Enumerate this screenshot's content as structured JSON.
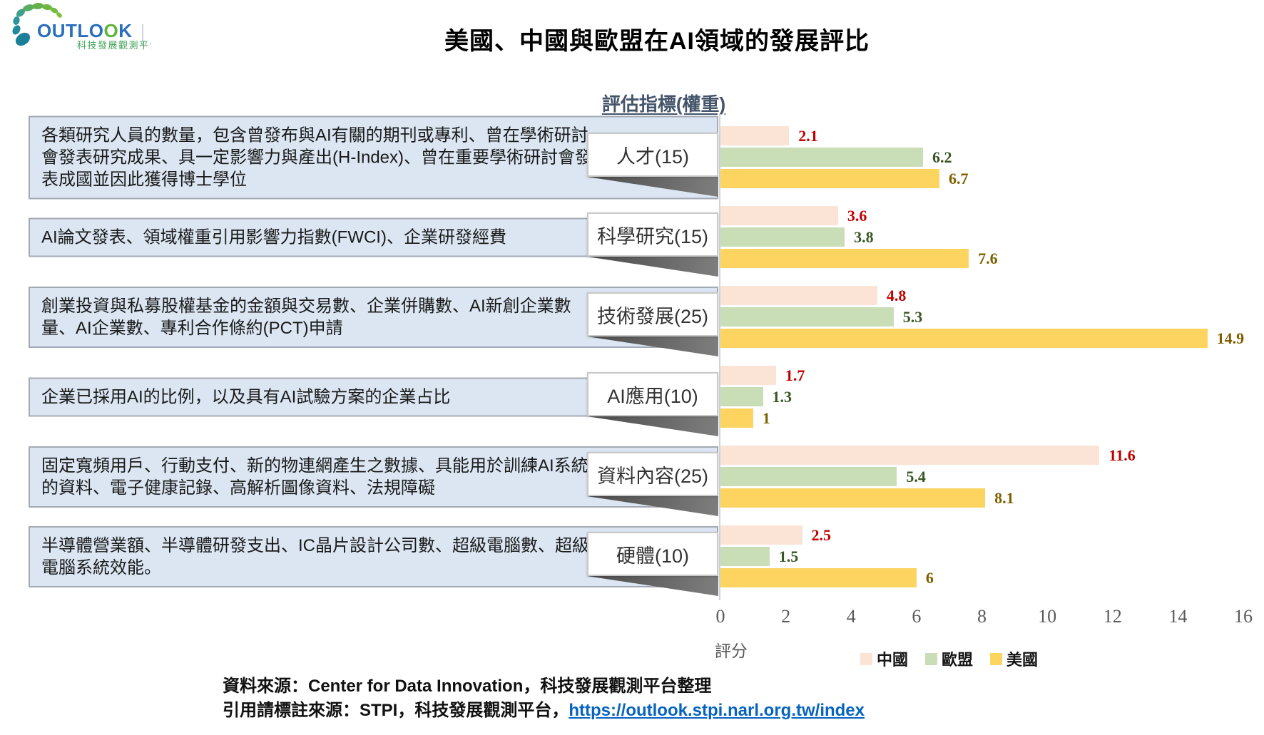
{
  "page": {
    "logo": {
      "brand": "OUTLOOK",
      "subtitle": "科技發展觀測平台"
    },
    "title": "美國、中國與歐盟在AI領域的發展評比",
    "column_header": "評估指標(權重)",
    "source_line1": "資料來源：Center for Data Innovation，科技發展觀測平台整理",
    "source_line2_prefix": "引用請標註來源：STPI，科技發展觀測平台，",
    "source_link": "https://outlook.stpi.narl.org.tw/index"
  },
  "chart_data": {
    "type": "bar",
    "orientation": "horizontal",
    "title": "美國、中國與歐盟在AI領域的發展評比",
    "xlabel": "評分",
    "xlim": [
      0,
      16
    ],
    "xticks": [
      0,
      2,
      4,
      6,
      8,
      10,
      12,
      14,
      16
    ],
    "grid": false,
    "legend_position": "bottom",
    "categories": [
      {
        "label": "人才(15)",
        "description": "各類研究人員的數量，包含曾發布與AI有關的期刊或專利、曾在學術研討會發表研究成果、具一定影響力與產出(H-Index)、曾在重要學術研討會發表成國並因此獲得博士學位"
      },
      {
        "label": "科學研究(15)",
        "description": "AI論文發表、領域權重引用影響力指數(FWCI)、企業研發經費"
      },
      {
        "label": "技術發展(25)",
        "description": "創業投資與私募股權基金的金額與交易數、企業併購數、AI新創企業數量、AI企業數、專利合作條約(PCT)申請"
      },
      {
        "label": "AI應用(10)",
        "description": "企業已採用AI的比例，以及具有AI試驗方案的企業占比"
      },
      {
        "label": "資料內容(25)",
        "description": "固定寬頻用戶、行動支付、新的物連網產生之數據、具能用於訓練AI系統的資料、電子健康記錄、高解析圖像資料、法規障礙"
      },
      {
        "label": "硬體(10)",
        "description": "半導體營業額、半導體研發支出、IC晶片設計公司數、超級電腦數、超級電腦系統效能。"
      }
    ],
    "series": [
      {
        "name": "中國",
        "color": "#fbe3d6",
        "label_color": "#c00000",
        "values": [
          2.1,
          3.6,
          4.8,
          1.7,
          11.6,
          2.5
        ]
      },
      {
        "name": "歐盟",
        "color": "#c9deb6",
        "label_color": "#375623",
        "values": [
          6.2,
          3.8,
          5.3,
          1.3,
          5.4,
          1.5
        ]
      },
      {
        "name": "美國",
        "color": "#fcd45f",
        "label_color": "#7f6000",
        "values": [
          6.7,
          7.6,
          14.9,
          1,
          8.1,
          6
        ]
      }
    ]
  }
}
